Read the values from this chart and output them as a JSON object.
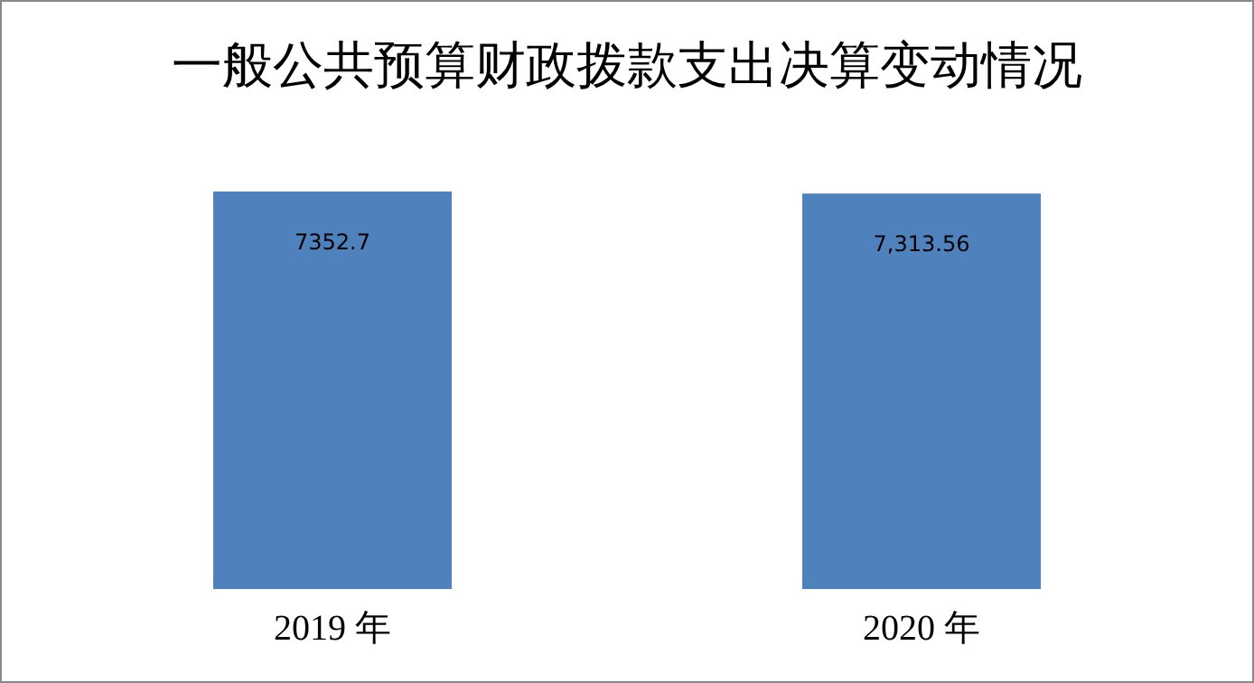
{
  "chart_data": {
    "type": "bar",
    "title": "一般公共预算财政拨款支出决算变动情况",
    "categories": [
      "2019 年",
      "2020 年"
    ],
    "values": [
      7352.7,
      7313.56
    ],
    "value_labels": [
      "7352.7",
      "7,313.56"
    ],
    "color": "#4f81bd"
  }
}
